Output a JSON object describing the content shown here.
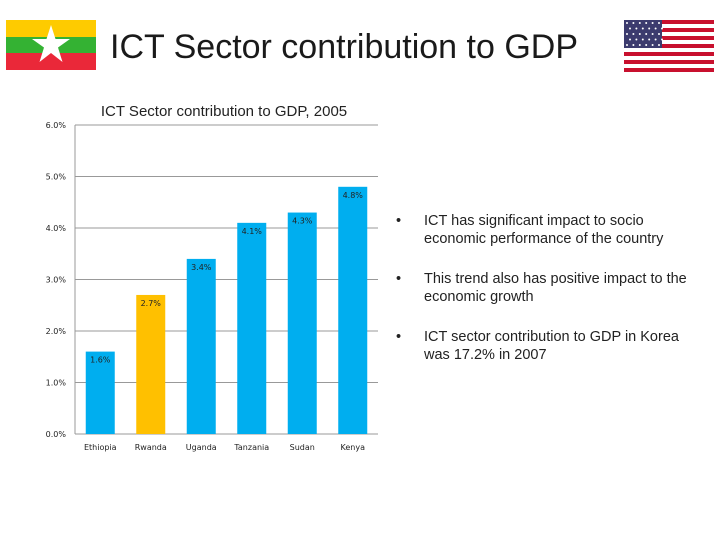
{
  "slide_title": "ICT Sector contribution to GDP",
  "flags": {
    "left": "myanmar-flag",
    "right": "us-flag"
  },
  "chart_data": {
    "type": "bar",
    "title": "ICT Sector contribution to GDP, 2005",
    "categories": [
      "Ethiopia",
      "Rwanda",
      "Uganda",
      "Tanzania",
      "Sudan",
      "Kenya"
    ],
    "values": [
      1.6,
      2.7,
      3.4,
      4.1,
      4.3,
      4.8
    ],
    "data_labels": [
      "1.6%",
      "2.7%",
      "3.4%",
      "4.1%",
      "4.3%",
      "4.8%"
    ],
    "colors": [
      "#00aeef",
      "#ffc000",
      "#00aeef",
      "#00aeef",
      "#00aeef",
      "#00aeef"
    ],
    "ylim": [
      0,
      6
    ],
    "yticks": [
      "0.0%",
      "1.0%",
      "2.0%",
      "3.0%",
      "4.0%",
      "5.0%",
      "6.0%"
    ],
    "grid": true,
    "xlabel": "",
    "ylabel": ""
  },
  "bullets": [
    "ICT has significant impact to socio economic performance of the country",
    "This trend also has positive impact to the economic growth",
    "ICT sector contribution to GDP in Korea was 17.2% in 2007"
  ]
}
